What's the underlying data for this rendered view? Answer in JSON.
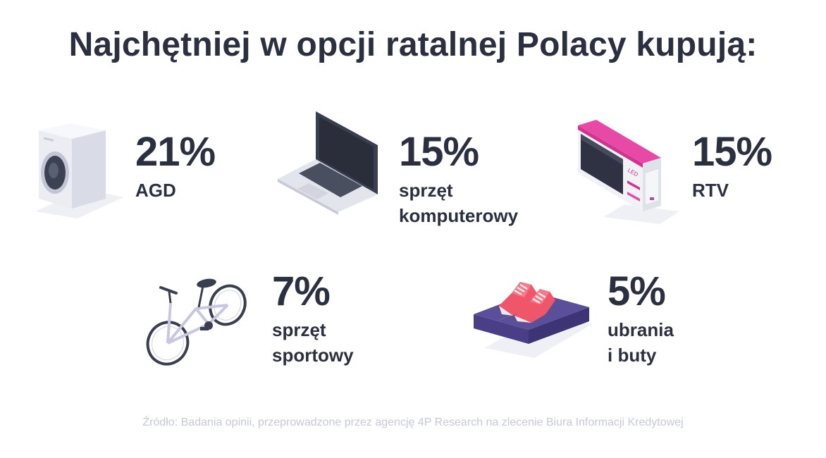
{
  "title": "Najchętniej w opcji ratalnej Polacy kupują:",
  "items": [
    {
      "percent": "21%",
      "label_lines": [
        "AGD"
      ],
      "icon": "washing-machine-icon"
    },
    {
      "percent": "15%",
      "label_lines": [
        "sprzęt",
        "komputerowy"
      ],
      "icon": "laptop-icon"
    },
    {
      "percent": "15%",
      "label_lines": [
        "RTV"
      ],
      "icon": "tv-box-icon"
    },
    {
      "percent": "7%",
      "label_lines": [
        "sprzęt",
        "sportowy"
      ],
      "icon": "bicycle-icon"
    },
    {
      "percent": "5%",
      "label_lines": [
        "ubrania",
        "i buty"
      ],
      "icon": "sneakers-icon"
    }
  ],
  "tv_box_text": "LED",
  "source": "Źródło: Badania opinii, przeprowadzone przez agencję 4P Research na zlecenie Biura Informacji Kredytowej",
  "colors": {
    "text": "#2b3041",
    "source_text": "#c5c9da",
    "accent_magenta": "#d2338f",
    "sneaker_pink": "#f0566a",
    "cloth_purple": "#5b4f9a"
  }
}
